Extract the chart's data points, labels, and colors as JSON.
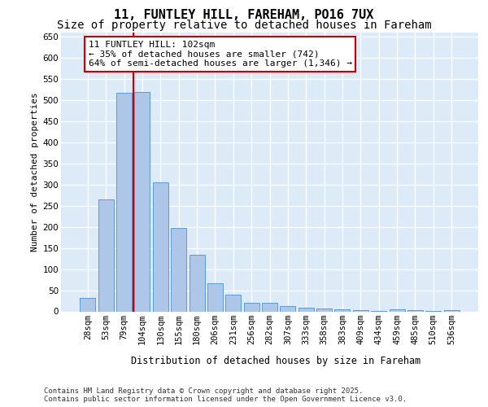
{
  "title": "11, FUNTLEY HILL, FAREHAM, PO16 7UX",
  "subtitle": "Size of property relative to detached houses in Fareham",
  "xlabel": "Distribution of detached houses by size in Fareham",
  "ylabel": "Number of detached properties",
  "categories": [
    "28sqm",
    "53sqm",
    "79sqm",
    "104sqm",
    "130sqm",
    "155sqm",
    "180sqm",
    "206sqm",
    "231sqm",
    "256sqm",
    "282sqm",
    "307sqm",
    "333sqm",
    "358sqm",
    "383sqm",
    "409sqm",
    "434sqm",
    "459sqm",
    "485sqm",
    "510sqm",
    "536sqm"
  ],
  "values": [
    31,
    265,
    517,
    520,
    305,
    198,
    133,
    67,
    40,
    20,
    20,
    13,
    8,
    7,
    4,
    2,
    1,
    4,
    2,
    1,
    3
  ],
  "bar_color": "#aec6e8",
  "bar_edge_color": "#5b9bd5",
  "background_color": "#ddeaf7",
  "grid_color": "#ffffff",
  "vline_color": "#cc0000",
  "annotation_text": "11 FUNTLEY HILL: 102sqm\n← 35% of detached houses are smaller (742)\n64% of semi-detached houses are larger (1,346) →",
  "annotation_box_color": "#ffffff",
  "annotation_box_edge": "#cc0000",
  "ylim": [
    0,
    660
  ],
  "yticks": [
    0,
    50,
    100,
    150,
    200,
    250,
    300,
    350,
    400,
    450,
    500,
    550,
    600,
    650
  ],
  "footer_text": "Contains HM Land Registry data © Crown copyright and database right 2025.\nContains public sector information licensed under the Open Government Licence v3.0.",
  "title_fontsize": 11,
  "subtitle_fontsize": 10,
  "xlabel_fontsize": 8.5,
  "ylabel_fontsize": 8,
  "tick_fontsize": 7.5,
  "annotation_fontsize": 8,
  "footer_fontsize": 6.5
}
